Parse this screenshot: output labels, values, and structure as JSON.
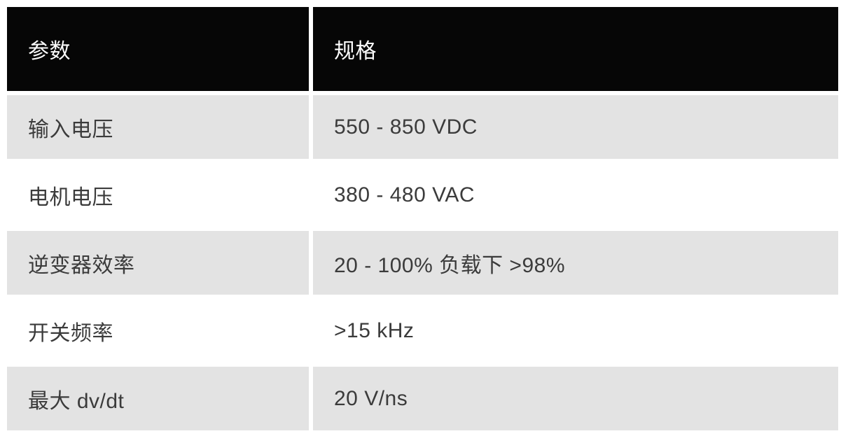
{
  "table": {
    "header": {
      "param_label": "参数",
      "spec_label": "规格"
    },
    "rows": [
      {
        "param": "输入电压",
        "spec": "550 - 850 VDC"
      },
      {
        "param": "电机电压",
        "spec": "380 - 480 VAC"
      },
      {
        "param": "逆变器效率",
        "spec": "20 - 100% 负载下 >98%"
      },
      {
        "param": "开关频率",
        "spec": ">15 kHz"
      },
      {
        "param": "最大 dv/dt",
        "spec": "20 V/ns"
      }
    ],
    "colors": {
      "header_background": "#060606",
      "header_text": "#fdfdfd",
      "row_shade": "#e3e3e3",
      "row_white": "#ffffff",
      "body_text": "#3b3b3b"
    }
  },
  "chart_data": {
    "type": "table",
    "columns": [
      "参数",
      "规格"
    ],
    "rows": [
      [
        "输入电压",
        "550 - 850 VDC"
      ],
      [
        "电机电压",
        "380 - 480 VAC"
      ],
      [
        "逆变器效率",
        "20 - 100% 负载下 >98%"
      ],
      [
        "开关频率",
        ">15 kHz"
      ],
      [
        "最大 dv/dt",
        "20 V/ns"
      ]
    ]
  }
}
